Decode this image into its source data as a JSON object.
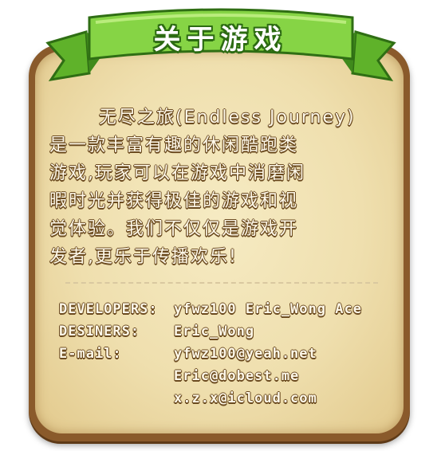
{
  "banner": {
    "title": "关于游戏"
  },
  "description": {
    "lines": [
      "无尽之旅(Endless Journey)",
      "是一款丰富有趣的休闲酷跑类",
      "游戏,玩家可以在游戏中消磨闲",
      "暇时光并获得极佳的游戏和视",
      "觉体验。我们不仅仅是游戏开",
      "发者,更乐于传播欢乐!"
    ]
  },
  "credits": {
    "developers": {
      "label": "DEVELOPERS:",
      "value": "yfwz100 Eric_Wong Ace"
    },
    "designers": {
      "label": "DESINERS:",
      "value": "Eric_Wong"
    },
    "email": {
      "label": "E-mail:",
      "values": [
        "yfwz100@yeah.net",
        "Eric@dobest.me",
        "x.z.x@icloud.com"
      ]
    }
  },
  "colors": {
    "ribbon_green": "#7ccf3c",
    "ribbon_dark": "#3f8a1c",
    "parchment": "#efdfae",
    "frame": "#8a5a2b"
  }
}
